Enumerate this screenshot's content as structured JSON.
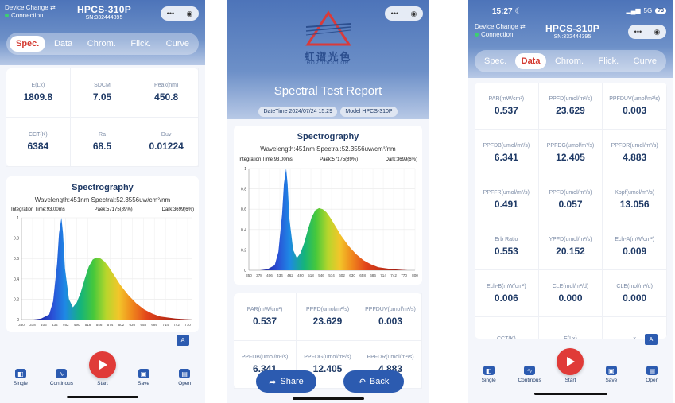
{
  "device": {
    "change_label": "Device Change",
    "status": "Connection",
    "model": "HPCS-310P",
    "serial": "SN:332444395"
  },
  "capsule": {
    "more": "•••",
    "target": "◉"
  },
  "tabs": [
    "Spec.",
    "Data",
    "Chrom.",
    "Flick.",
    "Curve"
  ],
  "screen1": {
    "active_tab": "Spec.",
    "metrics": [
      {
        "label": "E(Lx)",
        "value": "1809.8"
      },
      {
        "label": "SDCM",
        "value": "7.05"
      },
      {
        "label": "Peak(nm)",
        "value": "450.8"
      },
      {
        "label": "CCT(K)",
        "value": "6384"
      },
      {
        "label": "Ra",
        "value": "68.5"
      },
      {
        "label": "Duv",
        "value": "0.01224"
      }
    ],
    "spectro": {
      "title": "Spectrography",
      "subtitle": "Wavelength:451nm Spectral:52.3556uw/cm²/nm",
      "integration": "Integration Time:93.00ms",
      "peak": "Paek:57175(89%)",
      "dark": "Dark:3699(6%)"
    }
  },
  "bottom_nav": {
    "single": "Single",
    "continuous": "Continous",
    "start": "Start",
    "save": "Save",
    "open": "Open"
  },
  "translate_badge": "A",
  "screen2": {
    "brand_cn": "虹谱光色",
    "brand_en": "HOPOOCOLOR",
    "report_title": "Spectral Test Report",
    "datetime": "DateTime 2024/07/24 15:29",
    "model": "Model HPCS-310P",
    "spectro": {
      "title": "Spectrography",
      "subtitle": "Wavelength:451nm Spectral:52.3556uw/cm²/nm",
      "integration": "Integration Time:93.00ms",
      "peak": "Paek:57175(89%)",
      "dark": "Dark:3699(6%)"
    },
    "metrics": [
      {
        "label": "PAR(mW/cm²)",
        "value": "0.537"
      },
      {
        "label": "PPFD(umol/m²/s)",
        "value": "23.629"
      },
      {
        "label": "PPFDUV(umol/m²/s)",
        "value": "0.003"
      },
      {
        "label": "PPFDB(umol/m²/s)",
        "value": "6.341"
      },
      {
        "label": "PPFDG(umol/m²/s)",
        "value": "12.405"
      },
      {
        "label": "PPFDR(umol/m²/s)",
        "value": "4.883"
      }
    ],
    "share_label": "Share",
    "back_label": "Back"
  },
  "screen3": {
    "status_time": "15:27",
    "network": "5G",
    "battery": "73",
    "active_tab": "Data",
    "metrics": [
      {
        "label": "PAR(mW/cm²)",
        "value": "0.537"
      },
      {
        "label": "PPFD(umol/m²/s)",
        "value": "23.629"
      },
      {
        "label": "PPFDUV(umol/m²/s)",
        "value": "0.003"
      },
      {
        "label": "PPFDB(umol/m²/s)",
        "value": "6.341"
      },
      {
        "label": "PPFDG(umol/m²/s)",
        "value": "12.405"
      },
      {
        "label": "PPFDR(umol/m²/s)",
        "value": "4.883"
      },
      {
        "label": "PPFFR(umol/m²/s)",
        "value": "0.491"
      },
      {
        "label": "PPFD(umol/m²/s)",
        "value": "0.057"
      },
      {
        "label": "Kppf(umol/m²/s)",
        "value": "13.056"
      },
      {
        "label": "Erb Ratio",
        "value": "0.553"
      },
      {
        "label": "YPFD(umol/m²/s)",
        "value": "20.152"
      },
      {
        "label": "Ech-A(mW/cm²)",
        "value": "0.009"
      },
      {
        "label": "Ech-B(mW/cm²)",
        "value": "0.006"
      },
      {
        "label": "CLE(mol/m²/d)",
        "value": "0.000"
      },
      {
        "label": "CLE(mol/m²/d)",
        "value": "0.000"
      },
      {
        "label": "CCT(K)",
        "value": ""
      },
      {
        "label": "E(Lx)",
        "value": ""
      },
      {
        "label": "x",
        "value": ""
      }
    ]
  },
  "chart_data": [
    {
      "type": "area",
      "title": "Spectrography",
      "x": [
        380,
        400,
        420,
        430,
        440,
        445,
        451,
        455,
        460,
        470,
        480,
        490,
        500,
        510,
        520,
        530,
        540,
        550,
        560,
        570,
        580,
        590,
        600,
        620,
        640,
        660,
        680,
        700,
        720,
        740,
        760,
        780
      ],
      "values": [
        0.0,
        0.01,
        0.05,
        0.18,
        0.55,
        0.85,
        1.0,
        0.85,
        0.5,
        0.2,
        0.12,
        0.17,
        0.27,
        0.4,
        0.52,
        0.59,
        0.61,
        0.6,
        0.57,
        0.52,
        0.46,
        0.4,
        0.34,
        0.24,
        0.16,
        0.1,
        0.06,
        0.03,
        0.02,
        0.01,
        0.005,
        0.0
      ],
      "xlim": [
        350,
        780
      ],
      "ylim": [
        0,
        1
      ],
      "xticks": [
        350,
        378,
        406,
        434,
        462,
        490,
        518,
        546,
        574,
        602,
        630,
        658,
        686,
        714,
        742,
        770,
        800
      ],
      "ylabel_ticks": [
        "0",
        "0.2",
        "0.4",
        "0.6",
        "0.8",
        "1"
      ]
    },
    {
      "type": "area",
      "title": "Spectrography",
      "x": [
        380,
        400,
        420,
        430,
        440,
        445,
        451,
        455,
        460,
        470,
        480,
        490,
        500,
        510,
        520,
        530,
        540,
        550,
        560,
        570,
        580,
        590,
        600,
        620,
        640,
        660,
        680,
        700,
        720,
        740,
        760,
        780
      ],
      "values": [
        0.0,
        0.01,
        0.05,
        0.18,
        0.55,
        0.85,
        1.0,
        0.85,
        0.5,
        0.2,
        0.12,
        0.17,
        0.27,
        0.4,
        0.52,
        0.59,
        0.61,
        0.6,
        0.57,
        0.52,
        0.46,
        0.4,
        0.34,
        0.24,
        0.16,
        0.1,
        0.06,
        0.03,
        0.02,
        0.01,
        0.005,
        0.0
      ],
      "xlim": [
        350,
        800
      ],
      "ylim": [
        0,
        1
      ],
      "xticks": [
        350,
        378,
        406,
        434,
        462,
        490,
        518,
        546,
        574,
        602,
        630,
        658,
        686,
        714,
        742,
        770,
        800
      ],
      "ylabel_ticks": [
        "0",
        "0.2",
        "0.4",
        "0.6",
        "0.8",
        "1"
      ]
    }
  ]
}
